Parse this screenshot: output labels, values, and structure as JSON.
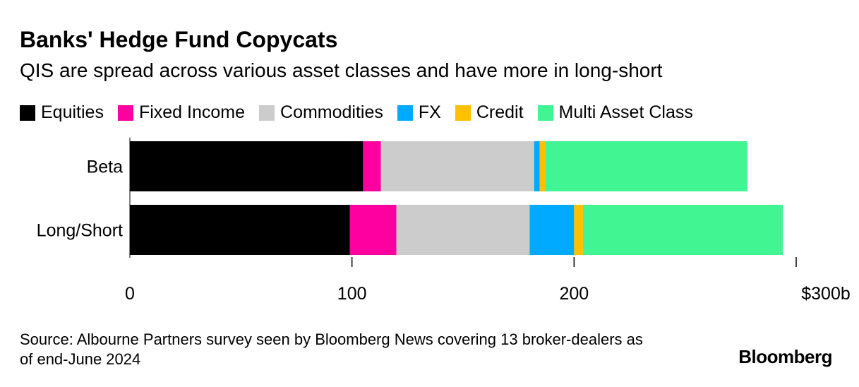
{
  "chart_data": {
    "type": "bar",
    "orientation": "horizontal",
    "stacked": true,
    "title": "Banks' Hedge Fund Copycats",
    "subtitle": "QIS are spread across various asset classes and have more in long-short",
    "categories": [
      "Beta",
      "Long/Short"
    ],
    "series": [
      {
        "name": "Equities",
        "color": "#000000",
        "values": [
          105,
          99
        ]
      },
      {
        "name": "Fixed Income",
        "color": "#ff00a0",
        "values": [
          8,
          21
        ]
      },
      {
        "name": "Commodities",
        "color": "#cccccc",
        "values": [
          69,
          60
        ]
      },
      {
        "name": "FX",
        "color": "#00aaff",
        "values": [
          2.5,
          20
        ]
      },
      {
        "name": "Credit",
        "color": "#ffc000",
        "values": [
          2.5,
          4
        ]
      },
      {
        "name": "Multi Asset Class",
        "color": "#40f592",
        "values": [
          91,
          90
        ]
      }
    ],
    "xlim": [
      0,
      300
    ],
    "x_ticks": [
      {
        "value": 0,
        "label": "0"
      },
      {
        "value": 100,
        "label": "100"
      },
      {
        "value": 200,
        "label": "200"
      },
      {
        "value": 300,
        "label": "$300b"
      }
    ],
    "xlabel": "",
    "ylabel": "",
    "grid": false,
    "legend_position": "top"
  },
  "source_text": "Source: Albourne Partners survey seen by Bloomberg News covering 13 broker-dealers as of end-June 2024",
  "brand": "Bloomberg"
}
